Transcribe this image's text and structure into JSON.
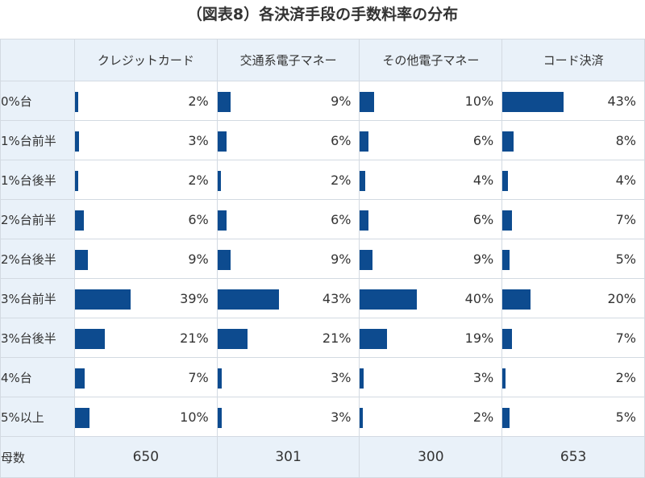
{
  "title": "（図表8）各決済手段の手数料率の分布",
  "colors": {
    "bar": "#0d4b8f",
    "header_bg": "#e9f1f9",
    "border": "#d3dae2"
  },
  "chart_data": {
    "type": "table",
    "title": "（図表8）各決済手段の手数料率の分布",
    "columns": [
      "クレジットカード",
      "交通系電子マネー",
      "その他電子マネー",
      "コード決済"
    ],
    "rows": [
      "0%台",
      "1%台前半",
      "1%台後半",
      "2%台前半",
      "2%台後半",
      "3%台前半",
      "3%台後半",
      "4%台",
      "5%以上"
    ],
    "values": [
      [
        2,
        9,
        10,
        43
      ],
      [
        3,
        6,
        6,
        8
      ],
      [
        2,
        2,
        4,
        4
      ],
      [
        6,
        6,
        6,
        7
      ],
      [
        9,
        9,
        9,
        5
      ],
      [
        39,
        43,
        40,
        20
      ],
      [
        21,
        21,
        19,
        7
      ],
      [
        7,
        3,
        3,
        2
      ],
      [
        10,
        3,
        2,
        5
      ]
    ],
    "value_labels": [
      [
        "2%",
        "9%",
        "10%",
        "43%"
      ],
      [
        "3%",
        "6%",
        "6%",
        "8%"
      ],
      [
        "2%",
        "2%",
        "4%",
        "4%"
      ],
      [
        "6%",
        "6%",
        "6%",
        "7%"
      ],
      [
        "9%",
        "9%",
        "9%",
        "5%"
      ],
      [
        "39%",
        "43%",
        "40%",
        "20%"
      ],
      [
        "21%",
        "21%",
        "19%",
        "7%"
      ],
      [
        "7%",
        "3%",
        "3%",
        "2%"
      ],
      [
        "10%",
        "3%",
        "2%",
        "5%"
      ]
    ],
    "total_label": "母数",
    "totals": [
      "650",
      "301",
      "300",
      "653"
    ]
  }
}
